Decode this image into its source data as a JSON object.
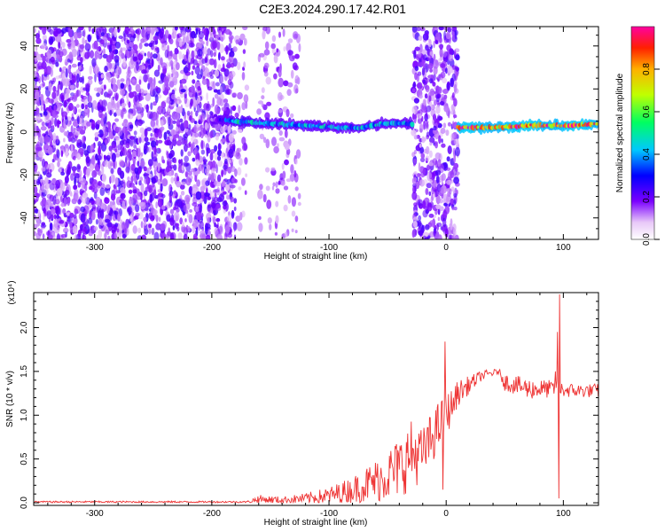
{
  "title": "C2E3.2024.290.17.42.R01",
  "chart_data": [
    {
      "type": "heatmap",
      "xlabel": "Height of straight line (km)",
      "ylabel": "Frequency (Hz)",
      "xlim": [
        -352,
        130
      ],
      "ylim": [
        -50,
        49
      ],
      "x_ticks": [
        -300,
        -200,
        -100,
        0,
        100
      ],
      "y_ticks": [
        -40,
        -20,
        0,
        20,
        40
      ],
      "x_tick_labels": [
        "-300",
        "-200",
        "-100",
        "0",
        "100"
      ],
      "y_tick_labels": [
        "-40",
        "-20",
        "0",
        "20",
        "40"
      ],
      "colorbar": {
        "label": "Normalized spectral amplitude",
        "range": [
          0,
          1
        ],
        "ticks": [
          0.0,
          0.2,
          0.4,
          0.6,
          0.8
        ],
        "tick_labels": [
          "0.0",
          "0.2",
          "0.4",
          "0.6",
          "0.8"
        ]
      },
      "noise_regions": [
        {
          "x": [
            -352,
            -180
          ],
          "density": 1.0
        },
        {
          "x": [
            -180,
            -170
          ],
          "density": 0.3
        },
        {
          "x": [
            -160,
            -150
          ],
          "density": 0.25
        },
        {
          "x": [
            -148,
            -125
          ],
          "density": 0.3
        },
        {
          "x": [
            -28,
            10
          ],
          "density": 1.0
        }
      ],
      "signal_band": [
        {
          "x": -200,
          "freq": 6,
          "amp": 0.1
        },
        {
          "x": -180,
          "freq": 5,
          "amp": 0.5
        },
        {
          "x": -150,
          "freq": 4,
          "amp": 0.45
        },
        {
          "x": -120,
          "freq": 3,
          "amp": 0.45
        },
        {
          "x": -90,
          "freq": 2,
          "amp": 0.45
        },
        {
          "x": -70,
          "freq": 2,
          "amp": 0.45
        },
        {
          "x": -55,
          "freq": 4,
          "amp": 0.45
        },
        {
          "x": -35,
          "freq": 4,
          "amp": 0.4
        },
        {
          "x": 15,
          "freq": 2,
          "amp": 0.95
        },
        {
          "x": 40,
          "freq": 2,
          "amp": 0.9
        },
        {
          "x": 70,
          "freq": 3,
          "amp": 0.95
        },
        {
          "x": 90,
          "freq": 3,
          "amp": 0.9
        },
        {
          "x": 110,
          "freq": 3,
          "amp": 0.95
        },
        {
          "x": 130,
          "freq": 4,
          "amp": 0.9
        }
      ]
    },
    {
      "type": "line",
      "xlabel": "Height of straight line (km)",
      "ylabel": "SNR (10 * v/v)",
      "y_multiplier": "(x10⁴)",
      "xlim": [
        -352,
        130
      ],
      "ylim": [
        -0.03,
        2.4
      ],
      "x_ticks": [
        -300,
        -200,
        -100,
        0,
        100
      ],
      "y_ticks": [
        0.0,
        0.5,
        1.0,
        1.5,
        2.0
      ],
      "x_tick_labels": [
        "-300",
        "-200",
        "-100",
        "0",
        "100"
      ],
      "y_tick_labels": [
        "0.0",
        "0.5",
        "1.0",
        "1.5",
        "2.0"
      ],
      "line_color": "#ee3333",
      "envelope": [
        {
          "x": -352,
          "base": 0.01,
          "spread": 0.01
        },
        {
          "x": -170,
          "base": 0.01,
          "spread": 0.01
        },
        {
          "x": -160,
          "base": 0.04,
          "spread": 0.05
        },
        {
          "x": -140,
          "base": 0.03,
          "spread": 0.04
        },
        {
          "x": -120,
          "base": 0.05,
          "spread": 0.06
        },
        {
          "x": -100,
          "base": 0.08,
          "spread": 0.1
        },
        {
          "x": -80,
          "base": 0.15,
          "spread": 0.15
        },
        {
          "x": -60,
          "base": 0.25,
          "spread": 0.25
        },
        {
          "x": -40,
          "base": 0.4,
          "spread": 0.35
        },
        {
          "x": -30,
          "base": 0.55,
          "spread": 0.4
        },
        {
          "x": -20,
          "base": 0.55,
          "spread": 0.3
        },
        {
          "x": -10,
          "base": 0.8,
          "spread": 0.3
        },
        {
          "x": 0,
          "base": 1.0,
          "spread": 0.25
        },
        {
          "x": 10,
          "base": 1.25,
          "spread": 0.15
        },
        {
          "x": 20,
          "base": 1.35,
          "spread": 0.1
        },
        {
          "x": 30,
          "base": 1.45,
          "spread": 0.06
        },
        {
          "x": 45,
          "base": 1.5,
          "spread": 0.03
        },
        {
          "x": 50,
          "base": 1.38,
          "spread": 0.1
        },
        {
          "x": 70,
          "base": 1.3,
          "spread": 0.12
        },
        {
          "x": 90,
          "base": 1.3,
          "spread": 0.1
        },
        {
          "x": 110,
          "base": 1.28,
          "spread": 0.08
        },
        {
          "x": 130,
          "base": 1.28,
          "spread": 0.08
        }
      ],
      "spikes": [
        {
          "x": -1,
          "y": 1.84
        },
        {
          "x": -3,
          "y": 0.15
        },
        {
          "x": 6,
          "y": 1.2
        },
        {
          "x": 95,
          "y": 1.95
        },
        {
          "x": 97,
          "y": 2.38
        },
        {
          "x": 96,
          "y": 0.05
        },
        {
          "x": 93,
          "y": 1.5
        }
      ]
    }
  ]
}
